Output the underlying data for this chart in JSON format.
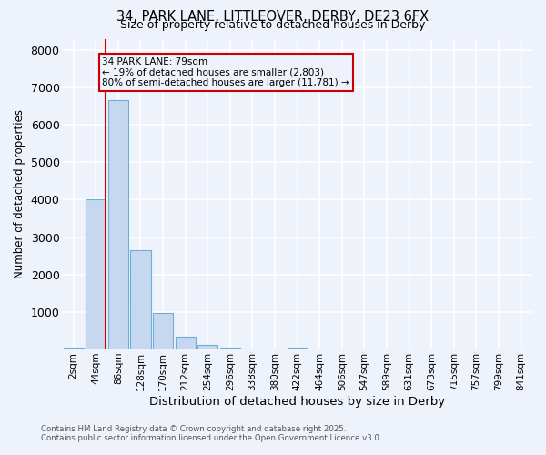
{
  "title_line1": "34, PARK LANE, LITTLEOVER, DERBY, DE23 6FX",
  "title_line2": "Size of property relative to detached houses in Derby",
  "xlabel": "Distribution of detached houses by size in Derby",
  "ylabel": "Number of detached properties",
  "bar_labels": [
    "2sqm",
    "44sqm",
    "86sqm",
    "128sqm",
    "170sqm",
    "212sqm",
    "254sqm",
    "296sqm",
    "338sqm",
    "380sqm",
    "422sqm",
    "464sqm",
    "506sqm",
    "547sqm",
    "589sqm",
    "631sqm",
    "673sqm",
    "715sqm",
    "757sqm",
    "799sqm",
    "841sqm"
  ],
  "bar_values": [
    60,
    4010,
    6650,
    2650,
    980,
    340,
    130,
    60,
    0,
    0,
    55,
    0,
    0,
    0,
    0,
    0,
    0,
    0,
    0,
    0,
    0
  ],
  "bar_color": "#c5d8f0",
  "bar_edge_color": "#6baed6",
  "vline_color": "#cc0000",
  "annotation_text": "34 PARK LANE: 79sqm\n← 19% of detached houses are smaller (2,803)\n80% of semi-detached houses are larger (11,781) →",
  "annotation_box_color": "#cc0000",
  "ylim": [
    0,
    8300
  ],
  "yticks": [
    0,
    1000,
    2000,
    3000,
    4000,
    5000,
    6000,
    7000,
    8000
  ],
  "footer_line1": "Contains HM Land Registry data © Crown copyright and database right 2025.",
  "footer_line2": "Contains public sector information licensed under the Open Government Licence v3.0.",
  "bg_color": "#eef2fa",
  "grid_color": "#ffffff"
}
